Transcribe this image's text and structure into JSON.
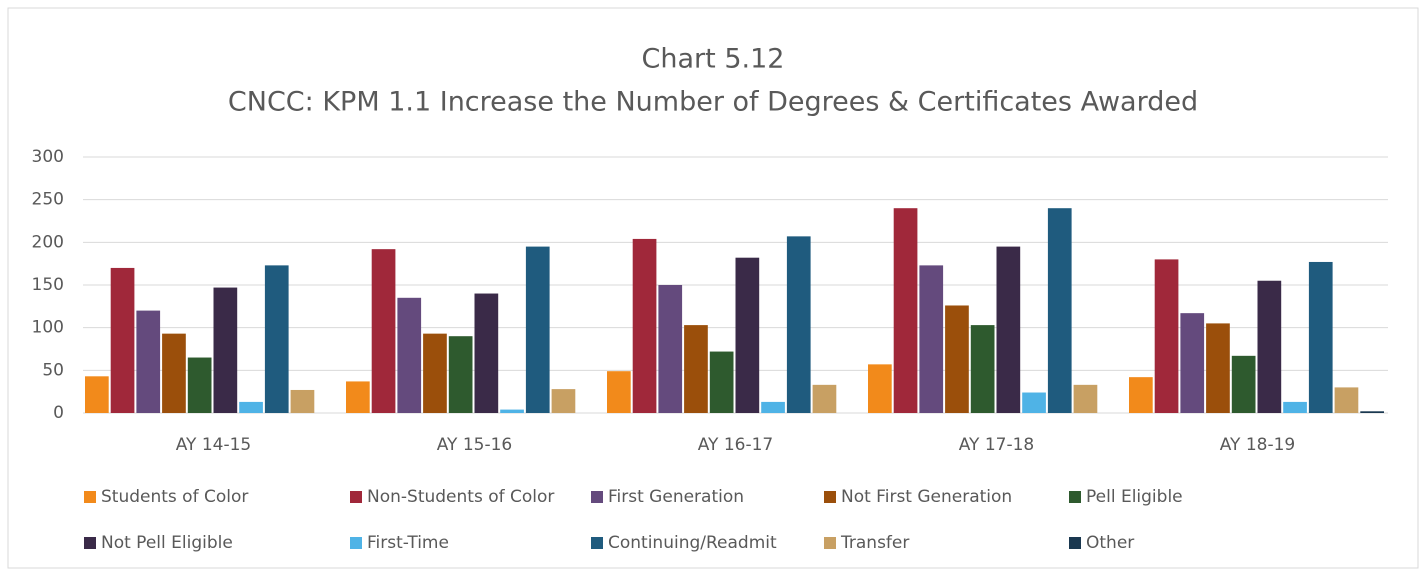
{
  "chart_data": {
    "type": "bar",
    "title": "Chart 5.12",
    "subtitle": "CNCC: KPM 1.1 Increase the Number of Degrees & Certificates Awarded",
    "categories": [
      "AY 14-15",
      "AY 15-16",
      "AY 16-17",
      "AY 17-18",
      "AY 18-19"
    ],
    "series": [
      {
        "name": "Students of Color",
        "color": "#f28a1b",
        "values": [
          43,
          37,
          49,
          57,
          42
        ]
      },
      {
        "name": "Non-Students of Color",
        "color": "#a0283a",
        "values": [
          170,
          192,
          204,
          240,
          180
        ]
      },
      {
        "name": "First Generation",
        "color": "#644a7d",
        "values": [
          120,
          135,
          150,
          173,
          117
        ]
      },
      {
        "name": "Not First Generation",
        "color": "#9b4f0b",
        "values": [
          93,
          93,
          103,
          126,
          105
        ]
      },
      {
        "name": "Pell Eligible",
        "color": "#2e5a2e",
        "values": [
          65,
          90,
          72,
          103,
          67
        ]
      },
      {
        "name": "Not Pell Eligible",
        "color": "#3a2a48",
        "values": [
          147,
          140,
          182,
          195,
          155
        ]
      },
      {
        "name": "First-Time",
        "color": "#4fb3e6",
        "values": [
          13,
          4,
          13,
          24,
          13
        ]
      },
      {
        "name": "Continuing/Readmit",
        "color": "#1f5b7e",
        "values": [
          173,
          195,
          207,
          240,
          177
        ]
      },
      {
        "name": "Transfer",
        "color": "#c8a063",
        "values": [
          27,
          28,
          33,
          33,
          30
        ]
      },
      {
        "name": "Other",
        "color": "#1a3850",
        "values": [
          0,
          0,
          0,
          0,
          2
        ]
      }
    ],
    "ylim": [
      0,
      300
    ],
    "yticks": [
      0,
      50,
      100,
      150,
      200,
      250,
      300
    ],
    "grid": true,
    "legend": "bottom"
  }
}
